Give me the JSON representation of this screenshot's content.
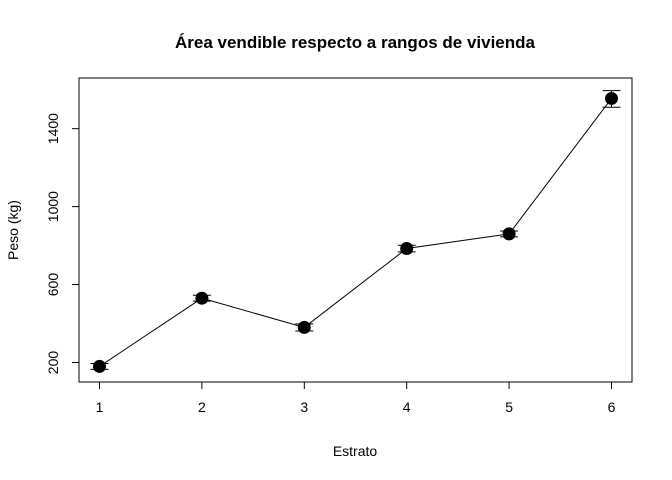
{
  "chart_data": {
    "type": "line",
    "title": "Área vendible respecto a rangos de vivienda",
    "xlabel": "Estrato",
    "ylabel": "Peso (kg)",
    "x": [
      1,
      2,
      3,
      4,
      5,
      6
    ],
    "series": [
      {
        "values": [
          180,
          530,
          380,
          785,
          860,
          1555
        ],
        "lower": [
          165,
          515,
          362,
          768,
          845,
          1510
        ],
        "upper": [
          195,
          545,
          398,
          802,
          875,
          1595
        ]
      }
    ],
    "xticks": [
      1,
      2,
      3,
      4,
      5,
      6
    ],
    "yticks": [
      200,
      600,
      1000,
      1400
    ],
    "xlim": [
      0.8,
      6.2
    ],
    "ylim": [
      100,
      1660
    ],
    "grid": false,
    "legend": "none",
    "colors": {
      "line": "#000000",
      "marker": "#000000"
    }
  }
}
